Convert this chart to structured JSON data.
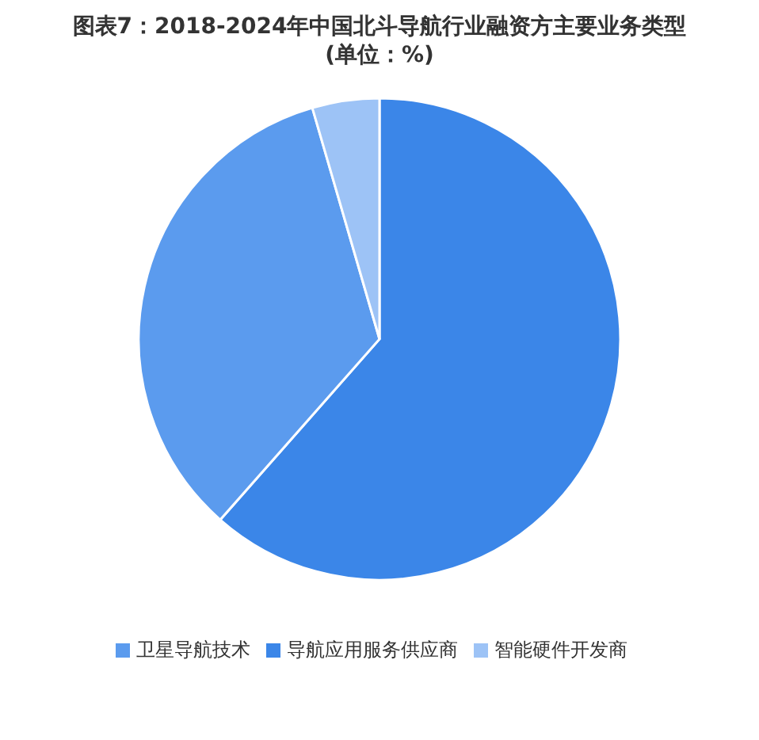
{
  "chart_data": {
    "type": "pie",
    "title": "图表7：2018-2024年中国北斗导航行业融资方主要业务类型",
    "subtitle": "(单位：%)",
    "categories": [
      "导航应用服务供应商",
      "卫星导航技术",
      "智能硬件开发商"
    ],
    "values": [
      61.5,
      34,
      4.5
    ],
    "colors": [
      "#3b86e8",
      "#5b9bee",
      "#9dc3f6"
    ],
    "legend": "bottom"
  }
}
